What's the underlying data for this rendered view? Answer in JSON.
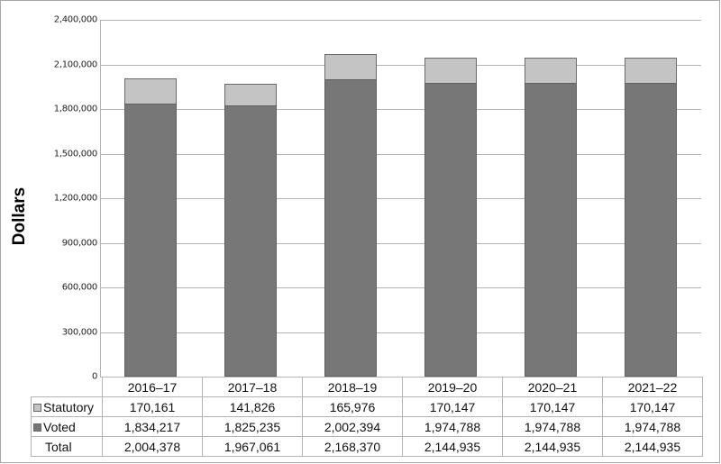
{
  "chart_data": {
    "type": "bar",
    "stacked": true,
    "title": "",
    "xlabel": "",
    "ylabel": "Dollars",
    "ylim": [
      0,
      2400000
    ],
    "yticks": [
      "0",
      "300,000",
      "600,000",
      "900,000",
      "1,200,000",
      "1,500,000",
      "1,800,000",
      "2,100,000",
      "2,400,000"
    ],
    "grid": true,
    "legend_position": "data-table",
    "categories": [
      "2016–17",
      "2017–18",
      "2018–19",
      "2019–20",
      "2020–21",
      "2021–22"
    ],
    "series": [
      {
        "name": "Statutory",
        "color": "#c4c4c4",
        "values": [
          170161,
          141826,
          165976,
          170147,
          170147,
          170147
        ],
        "labels": [
          "170,161",
          "141,826",
          "165,976",
          "170,147",
          "170,147",
          "170,147"
        ]
      },
      {
        "name": "Voted",
        "color": "#777777",
        "values": [
          1834217,
          1825235,
          2002394,
          1974788,
          1974788,
          1974788
        ],
        "labels": [
          "1,834,217",
          "1,825,235",
          "2,002,394",
          "1,974,788",
          "1,974,788",
          "1,974,788"
        ]
      }
    ],
    "totals": {
      "name": "Total",
      "values": [
        2004378,
        1967061,
        2168370,
        2144935,
        2144935,
        2144935
      ],
      "labels": [
        "2,004,378",
        "1,967,061",
        "2,168,370",
        "2,144,935",
        "2,144,935",
        "2,144,935"
      ]
    }
  }
}
